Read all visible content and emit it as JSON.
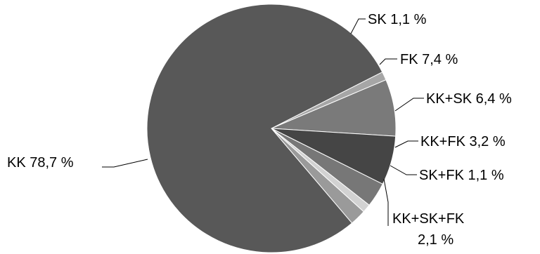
{
  "chart_data": {
    "type": "pie",
    "title": "",
    "slices": [
      {
        "name": "SK",
        "value": 1.1,
        "label": "SK 1,1 %",
        "color": "#a6a6a6"
      },
      {
        "name": "FK",
        "value": 7.4,
        "label": "FK 7,4 %",
        "color": "#7a7a7a"
      },
      {
        "name": "KK+SK",
        "value": 6.4,
        "label": "KK+SK 6,4 %",
        "color": "#454545"
      },
      {
        "name": "KK+FK",
        "value": 3.2,
        "label": "KK+FK 3,2 %",
        "color": "#777777"
      },
      {
        "name": "SK+FK",
        "value": 1.1,
        "label": "SK+FK 1,1 %",
        "color": "#d2d2d2"
      },
      {
        "name": "KK+SK+FK",
        "value": 2.1,
        "label_lines": [
          "KK+SK+FK",
          "2,1 %"
        ],
        "color": "#9a9a9a"
      },
      {
        "name": "KK",
        "value": 78.7,
        "label": "KK 78,7 %",
        "color": "#585858"
      }
    ]
  }
}
